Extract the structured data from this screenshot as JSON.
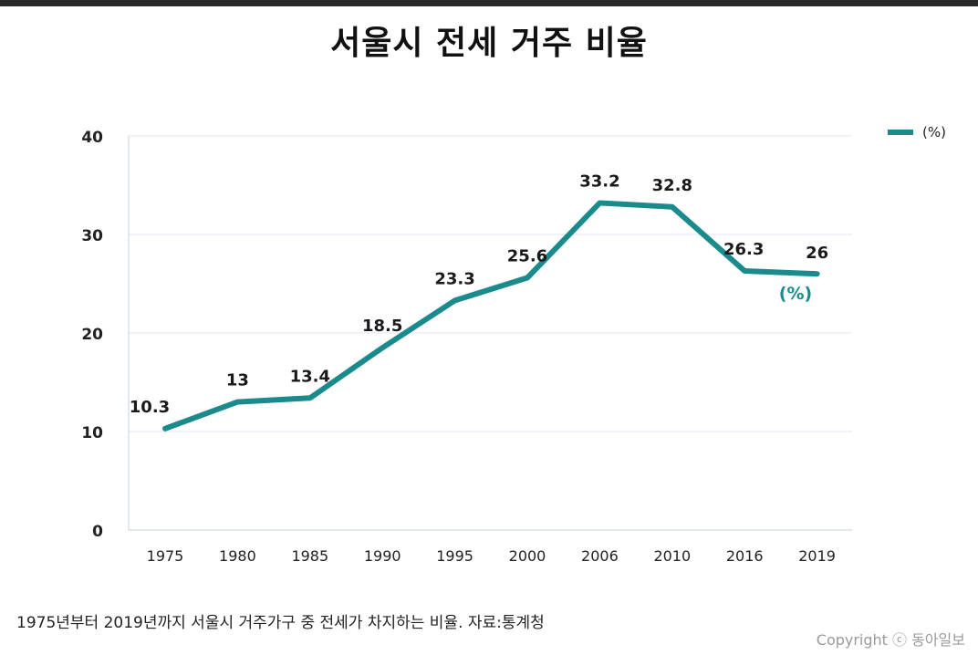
{
  "chart_data": {
    "type": "line",
    "title": "서울시 전세 거주 비율",
    "categories": [
      "1975",
      "1980",
      "1985",
      "1990",
      "1995",
      "2000",
      "2006",
      "2010",
      "2016",
      "2019"
    ],
    "series": [
      {
        "name": "(%)",
        "values": [
          10.3,
          13,
          13.4,
          18.5,
          23.3,
          25.6,
          33.2,
          32.8,
          26.3,
          26
        ],
        "value_labels": [
          "10.3",
          "13",
          "13.4",
          "18.5",
          "23.3",
          "25.6",
          "33.2",
          "32.8",
          "26.3",
          "26"
        ]
      }
    ],
    "y_ticks": [
      "0",
      "10",
      "20",
      "30",
      "40"
    ],
    "ylim": [
      0,
      40
    ],
    "grid": true,
    "legend": {
      "position": "top-right",
      "label": "(%)"
    },
    "unit_annotation": "(%)",
    "color": "#1a8a8c"
  },
  "caption": "1975년부터 2019년까지 서울시 거주가구 중 전세가 차지하는 비율. 자료:통계청",
  "copyright": "Copyright ⓒ 동아일보"
}
